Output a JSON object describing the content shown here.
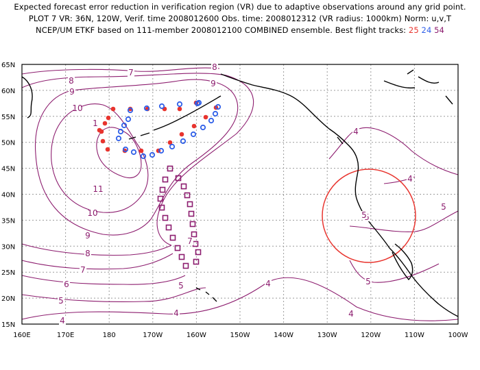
{
  "header": {
    "line1": "Expected forecast error reduction in verification region (VR) due to adaptive observations around any grid point.",
    "line2": "PLOT 7 VR: 36N, 120W, Verif. time 2008012600 Obs. time: 2008012312 (VR radius: 1000km) Norm: u,v,T",
    "line3_prefix": "NCEP/UM ETKF based on 111-member 2008012100 COMBINED ensemble.  Best flight tracks:",
    "track_a": "25",
    "track_b": "24",
    "track_c": "54"
  },
  "y_ticks": [
    "65N",
    "60N",
    "55N",
    "50N",
    "45N",
    "40N",
    "35N",
    "30N",
    "25N",
    "20N",
    "15N"
  ],
  "x_ticks": [
    "160E",
    "170E",
    "180",
    "170W",
    "160W",
    "150W",
    "140W",
    "130W",
    "120W",
    "110W",
    "100W"
  ],
  "contour_labels": [
    "7",
    "8",
    "8",
    "9",
    "9",
    "10",
    "1",
    "11",
    "10",
    "9",
    "8",
    "7",
    "6",
    "5",
    "4",
    "5",
    "4",
    "4",
    "5",
    "4",
    "5",
    "5",
    "4",
    "5",
    "4",
    "7"
  ],
  "colors": {
    "contour": "#8c1c6e",
    "track_25": "#e8342e",
    "track_24": "#2f5fe8",
    "track_54": "#8c1c6e",
    "vr_circle": "#e8342e",
    "coast": "#000000",
    "grid": "#9a9a9a"
  },
  "verification_region": {
    "center_lat": 36,
    "center_lon": -120,
    "radius_km": 1000
  },
  "tracks": {
    "track_25_symbol": "filled-dot",
    "track_24_symbol": "open-circle",
    "track_54_symbol": "open-square"
  }
}
